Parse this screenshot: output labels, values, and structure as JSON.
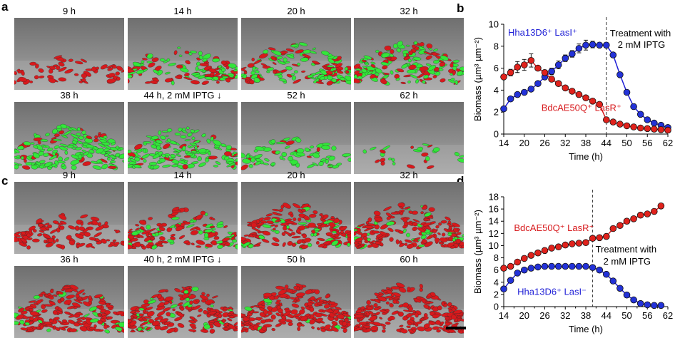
{
  "panels": {
    "a": {
      "letter": "a",
      "rows": [
        [
          "9 h",
          "14 h",
          "20 h",
          "32 h"
        ],
        [
          "38 h",
          "44  h, 2 mM IPTG ↓",
          "52 h",
          "62 h"
        ]
      ],
      "mix": [
        [
          {
            "red": 1.0,
            "green": 0.0,
            "density": 0.25
          },
          {
            "red": 0.55,
            "green": 0.45,
            "density": 0.55
          },
          {
            "red": 0.45,
            "green": 0.55,
            "density": 0.7
          },
          {
            "red": 0.35,
            "green": 0.65,
            "density": 0.75
          }
        ],
        [
          {
            "red": 0.15,
            "green": 0.85,
            "density": 0.8
          },
          {
            "red": 0.15,
            "green": 0.85,
            "density": 0.7
          },
          {
            "red": 0.1,
            "green": 0.9,
            "density": 0.35
          },
          {
            "red": 0.2,
            "green": 0.8,
            "density": 0.12
          }
        ]
      ]
    },
    "c": {
      "letter": "c",
      "rows": [
        [
          "9 h",
          "14 h",
          "20 h",
          "32 h"
        ],
        [
          "36 h",
          "40  h, 2 mM IPTG ↓",
          "50 h",
          "60 h"
        ]
      ],
      "mix": [
        [
          {
            "red": 1.0,
            "green": 0.0,
            "density": 0.45
          },
          {
            "red": 0.75,
            "green": 0.25,
            "density": 0.65
          },
          {
            "red": 0.8,
            "green": 0.2,
            "density": 0.8
          },
          {
            "red": 0.85,
            "green": 0.15,
            "density": 0.85
          }
        ],
        [
          {
            "red": 0.85,
            "green": 0.15,
            "density": 0.9
          },
          {
            "red": 0.85,
            "green": 0.15,
            "density": 0.9
          },
          {
            "red": 0.97,
            "green": 0.03,
            "density": 0.95
          },
          {
            "red": 1.0,
            "green": 0.0,
            "density": 0.98
          }
        ]
      ]
    },
    "b": {
      "letter": "b"
    },
    "d": {
      "letter": "d"
    }
  },
  "colors": {
    "red": "#d7191c",
    "blue": "#1f1fd6",
    "green": "#33e63a",
    "tile_bg": "#9a9a9a",
    "marker_red": "#e0221c",
    "marker_blue": "#2332d8"
  },
  "chart_data": [
    {
      "panel": "b",
      "type": "line",
      "xlabel": "Time (h)",
      "ylabel": "Biomass (µm³ µm⁻²)",
      "xlim": [
        14,
        62
      ],
      "ylim": [
        0,
        10
      ],
      "xticks": [
        14,
        20,
        26,
        32,
        38,
        44,
        50,
        56,
        62
      ],
      "yticks": [
        0,
        2,
        4,
        6,
        8,
        10
      ],
      "grid": false,
      "series": [
        {
          "name": "Hha13D6⁺ LasI⁺",
          "color": "blue",
          "x": [
            14,
            16,
            18,
            20,
            22,
            24,
            26,
            28,
            30,
            32,
            34,
            36,
            38,
            40,
            42,
            44,
            46,
            48,
            50,
            52,
            54,
            56,
            58,
            60,
            62
          ],
          "y": [
            2.3,
            3.2,
            3.6,
            3.8,
            4.1,
            4.6,
            5.2,
            5.7,
            6.3,
            6.9,
            7.3,
            7.8,
            8.1,
            8.15,
            8.1,
            8.1,
            7.2,
            5.4,
            3.8,
            2.5,
            1.8,
            1.3,
            1.0,
            0.8,
            0.6
          ],
          "err": [
            0,
            0,
            0,
            0,
            0,
            0,
            0,
            0.3,
            0.35,
            0.3,
            0.3,
            0.4,
            0.45,
            0.3,
            0.2,
            0,
            0,
            0,
            0,
            0,
            0,
            0,
            0,
            0,
            0
          ]
        },
        {
          "name": "BdcAE50Q⁺ LasR⁺",
          "color": "red",
          "x": [
            14,
            16,
            18,
            20,
            22,
            24,
            26,
            28,
            30,
            32,
            34,
            36,
            38,
            40,
            42,
            44,
            46,
            48,
            50,
            52,
            54,
            56,
            58,
            60,
            62
          ],
          "y": [
            5.2,
            5.6,
            6.1,
            6.3,
            6.7,
            6.0,
            5.6,
            5.0,
            4.6,
            4.2,
            3.9,
            3.6,
            3.3,
            3.0,
            2.7,
            1.3,
            1.1,
            0.9,
            0.75,
            0.65,
            0.55,
            0.5,
            0.45,
            0.4,
            0.35
          ],
          "err": [
            0,
            0.3,
            0.5,
            0.5,
            0.6,
            0,
            0,
            0,
            0,
            0,
            0,
            0,
            0,
            0,
            0,
            0,
            0,
            0,
            0,
            0,
            0,
            0,
            0,
            0,
            0
          ]
        }
      ],
      "treatment_x": 44,
      "annotations": {
        "treatment_line1": "Treatment with",
        "treatment_line2": "2 mM IPTG"
      }
    },
    {
      "panel": "d",
      "type": "line",
      "xlabel": "Time (h)",
      "ylabel": "Biomass (µm³ µm⁻²)",
      "xlim": [
        14,
        62
      ],
      "ylim": [
        0,
        18
      ],
      "xticks": [
        14,
        17,
        20,
        23,
        26,
        29,
        32,
        35,
        38,
        41,
        44,
        47,
        50,
        53,
        56,
        59,
        62
      ],
      "xticklabels": [
        14,
        20,
        26,
        32,
        38,
        44,
        50,
        56,
        62
      ],
      "yticks": [
        0,
        2,
        4,
        6,
        8,
        10,
        12,
        14,
        16,
        18
      ],
      "grid": false,
      "series": [
        {
          "name": "BdcAE50Q⁺ LasR⁺",
          "color": "red",
          "x": [
            14,
            16,
            18,
            20,
            22,
            24,
            26,
            28,
            30,
            32,
            34,
            36,
            38,
            40,
            42,
            44,
            46,
            48,
            50,
            52,
            54,
            56,
            58,
            60
          ],
          "y": [
            6.3,
            6.6,
            7.3,
            7.9,
            8.4,
            8.8,
            9.2,
            9.6,
            9.8,
            10.1,
            10.3,
            10.4,
            10.5,
            11.2,
            11.3,
            11.5,
            12.8,
            13.3,
            14.0,
            14.4,
            15.0,
            15.2,
            15.6,
            16.5
          ]
        },
        {
          "name": "Hha13D6⁺ LasI⁻",
          "color": "blue",
          "x": [
            14,
            16,
            18,
            20,
            22,
            24,
            26,
            28,
            30,
            32,
            34,
            36,
            38,
            40,
            42,
            44,
            46,
            48,
            50,
            52,
            54,
            56,
            58,
            60
          ],
          "y": [
            2.9,
            4.3,
            5.5,
            6.0,
            6.3,
            6.5,
            6.6,
            6.6,
            6.6,
            6.6,
            6.6,
            6.6,
            6.6,
            6.4,
            6.0,
            5.3,
            4.2,
            3.0,
            1.9,
            1.1,
            0.5,
            0.3,
            0.2,
            0.2
          ]
        }
      ],
      "treatment_x": 40,
      "annotations": {
        "treatment_line1": "Treatment with",
        "treatment_line2": "2 mM IPTG"
      }
    }
  ]
}
